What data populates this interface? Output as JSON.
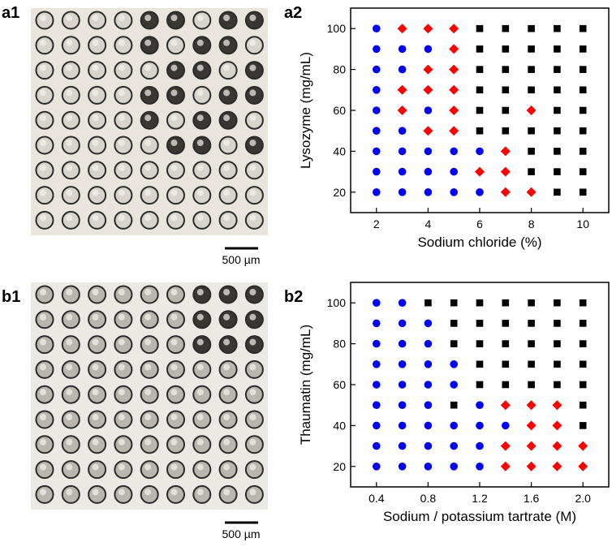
{
  "images": [
    {
      "label": "a1",
      "scale_bar": "500 µm"
    },
    {
      "label": "b1",
      "scale_bar": "500 µm"
    }
  ],
  "chart_data": [
    {
      "type": "scatter",
      "label": "a2",
      "xlabel": "Sodium chloride (%)",
      "ylabel": "Lysozyme (mg/mL)",
      "xlim": [
        1,
        11
      ],
      "ylim": [
        10,
        110
      ],
      "xticks": [
        2,
        4,
        6,
        8,
        10
      ],
      "yticks": [
        20,
        40,
        60,
        80,
        100
      ],
      "series": [
        {
          "marker": "circle",
          "color": "#0000ff",
          "x": [
            2,
            2,
            3,
            4,
            2,
            3,
            2,
            2,
            4,
            2,
            3,
            2,
            3,
            4,
            5,
            6,
            2,
            3,
            4,
            5,
            2,
            3,
            4,
            5,
            6
          ],
          "y": [
            100,
            90,
            90,
            90,
            80,
            80,
            70,
            60,
            60,
            50,
            50,
            40,
            40,
            40,
            40,
            40,
            30,
            30,
            30,
            30,
            20,
            20,
            20,
            20,
            20
          ]
        },
        {
          "marker": "diamond",
          "color": "#ff0000",
          "x": [
            3,
            4,
            5,
            5,
            4,
            5,
            3,
            4,
            5,
            3,
            5,
            8,
            4,
            5,
            7,
            6,
            7,
            7,
            8
          ],
          "y": [
            100,
            100,
            100,
            90,
            80,
            80,
            70,
            70,
            70,
            60,
            60,
            60,
            50,
            50,
            40,
            30,
            30,
            20,
            20
          ]
        },
        {
          "marker": "square",
          "color": "#000000",
          "x": [
            6,
            7,
            8,
            9,
            10,
            6,
            7,
            8,
            9,
            10,
            6,
            7,
            8,
            9,
            10,
            6,
            7,
            8,
            9,
            10,
            6,
            7,
            9,
            10,
            6,
            7,
            8,
            9,
            10,
            8,
            9,
            10,
            8,
            9,
            10,
            9,
            10
          ],
          "y": [
            100,
            100,
            100,
            100,
            100,
            90,
            90,
            90,
            90,
            90,
            80,
            80,
            80,
            80,
            80,
            70,
            70,
            70,
            70,
            70,
            60,
            60,
            60,
            60,
            50,
            50,
            50,
            50,
            50,
            40,
            40,
            40,
            30,
            30,
            30,
            20,
            20
          ]
        }
      ]
    },
    {
      "type": "scatter",
      "label": "b2",
      "xlabel": "Sodium / potassium tartrate (M)",
      "ylabel": "Thaumatin (mg/mL)",
      "xlim": [
        0.2,
        2.2
      ],
      "ylim": [
        10,
        110
      ],
      "xticks": [
        0.4,
        0.8,
        1.2,
        1.6,
        {
          "value": 2,
          "label": "2.0"
        }
      ],
      "yticks": [
        20,
        40,
        60,
        80,
        100
      ],
      "series": [
        {
          "marker": "circle",
          "color": "#0000ff",
          "x": [
            0.4,
            0.6,
            0.4,
            0.6,
            0.8,
            0.4,
            0.6,
            0.8,
            0.4,
            0.6,
            0.8,
            1,
            0.4,
            0.6,
            0.8,
            1,
            0.4,
            0.6,
            0.8,
            1.2,
            0.4,
            0.6,
            0.8,
            1,
            1.2,
            1.4,
            0.4,
            0.6,
            0.8,
            1,
            1.2,
            0.4,
            0.6,
            0.8,
            1,
            1.2
          ],
          "y": [
            100,
            100,
            90,
            90,
            90,
            80,
            80,
            80,
            70,
            70,
            70,
            70,
            60,
            60,
            60,
            60,
            50,
            50,
            50,
            50,
            40,
            40,
            40,
            40,
            40,
            40,
            30,
            30,
            30,
            30,
            30,
            20,
            20,
            20,
            20,
            20
          ]
        },
        {
          "marker": "diamond",
          "color": "#ff0000",
          "x": [
            1.4,
            1.6,
            1.8,
            1.6,
            1.8,
            1.4,
            1.6,
            1.8,
            2,
            1.4,
            1.6,
            1.8,
            2
          ],
          "y": [
            50,
            50,
            50,
            40,
            40,
            30,
            30,
            30,
            30,
            20,
            20,
            20,
            20
          ]
        },
        {
          "marker": "square",
          "color": "#000000",
          "x": [
            0.8,
            1,
            1.2,
            1.4,
            1.6,
            1.8,
            2,
            1,
            1.2,
            1.4,
            1.6,
            1.8,
            2,
            1,
            1.2,
            1.4,
            1.6,
            1.8,
            2,
            1.2,
            1.4,
            1.6,
            1.8,
            2,
            1.2,
            1.4,
            1.6,
            1.8,
            2,
            1,
            2,
            2
          ],
          "y": [
            100,
            100,
            100,
            100,
            100,
            100,
            100,
            90,
            90,
            90,
            90,
            90,
            90,
            80,
            80,
            80,
            80,
            80,
            80,
            70,
            70,
            70,
            70,
            70,
            60,
            60,
            60,
            60,
            60,
            50,
            50,
            40
          ]
        }
      ]
    }
  ]
}
